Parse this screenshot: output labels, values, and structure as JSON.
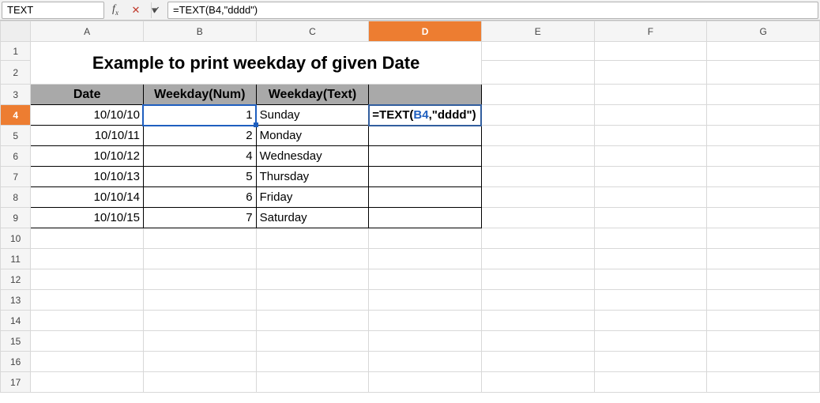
{
  "formula_bar": {
    "name_box_value": "TEXT",
    "formula_value": "=TEXT(B4,\"dddd\")"
  },
  "columns": [
    "A",
    "B",
    "C",
    "D",
    "E",
    "F",
    "G"
  ],
  "row_count": 17,
  "active_col": "D",
  "active_row": 4,
  "title": "Example to print weekday of given Date",
  "table": {
    "headers": {
      "date": "Date",
      "weekday_num": "Weekday(Num)",
      "weekday_text": "Weekday(Text)"
    },
    "rows": [
      {
        "date": "10/10/10",
        "num": "1",
        "text": "Sunday"
      },
      {
        "date": "10/10/11",
        "num": "2",
        "text": "Monday"
      },
      {
        "date": "10/10/12",
        "num": "4",
        "text": "Wednesday"
      },
      {
        "date": "10/10/13",
        "num": "5",
        "text": "Thursday"
      },
      {
        "date": "10/10/14",
        "num": "6",
        "text": "Friday"
      },
      {
        "date": "10/10/15",
        "num": "7",
        "text": "Saturday"
      }
    ]
  },
  "editing_cell_display": {
    "prefix": "=TEXT",
    "open": "(",
    "ref": "B4",
    "comma": ",",
    "str": "\"dddd\"",
    "close": ")"
  },
  "colors": {
    "active_header_bg": "#ed7d31",
    "ref_highlight": "#1f5fbf",
    "table_gray": "#a9a9a9"
  }
}
